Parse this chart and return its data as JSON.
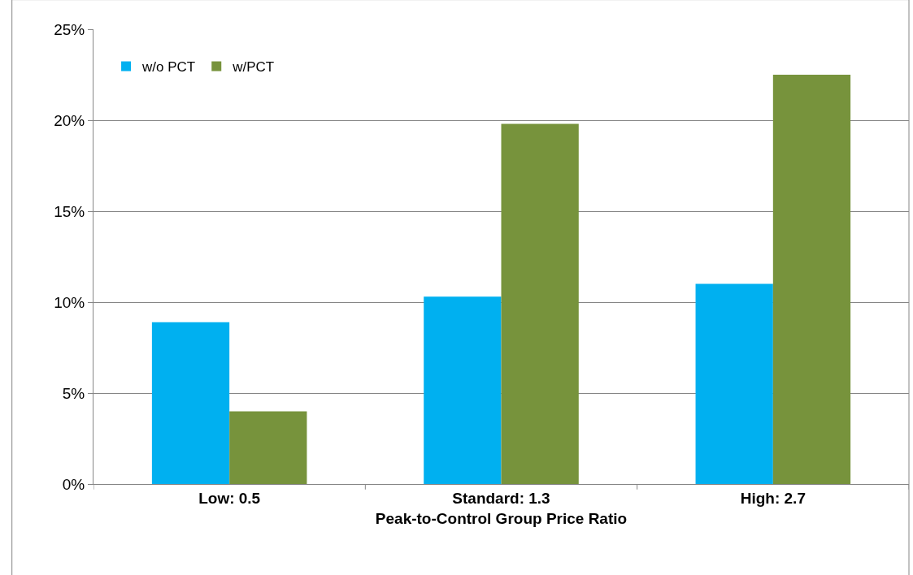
{
  "chart_data": {
    "type": "bar",
    "xlabel": "Peak-to-Control Group Price Ratio",
    "categories": [
      "Low: 0.5",
      "Standard: 1.3",
      "High: 2.7"
    ],
    "series": [
      {
        "name": "w/o PCT",
        "color": "#00b0f0",
        "values": [
          8.9,
          10.3,
          11.0
        ]
      },
      {
        "name": "w/PCT",
        "color": "#77933c",
        "values": [
          4.0,
          19.8,
          22.5
        ]
      }
    ],
    "ylim": [
      0,
      25
    ],
    "yticks": [
      {
        "value": 0,
        "label": "0%"
      },
      {
        "value": 5,
        "label": "5%"
      },
      {
        "value": 10,
        "label": "10%"
      },
      {
        "value": 15,
        "label": "15%"
      },
      {
        "value": 20,
        "label": "20%"
      },
      {
        "value": 25,
        "label": "25%"
      }
    ],
    "grid": "y",
    "legend": "top left"
  }
}
